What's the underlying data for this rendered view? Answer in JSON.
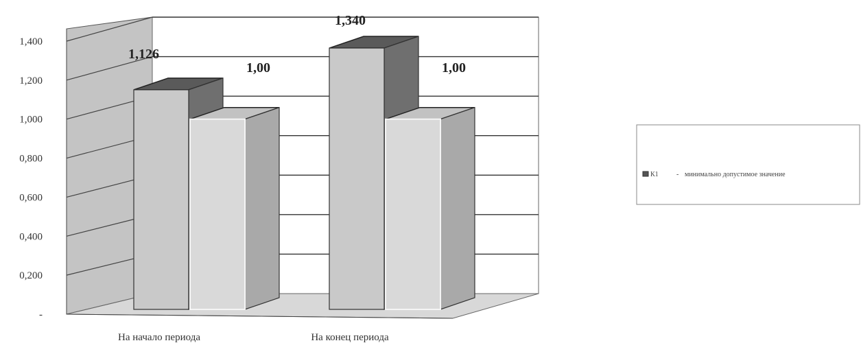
{
  "chart_data": {
    "type": "bar",
    "categories": [
      "На начало периода",
      "На конец периода"
    ],
    "series": [
      {
        "name": "К1",
        "values": [
          1.126,
          1.34
        ],
        "labels": [
          "1,126",
          "1,340"
        ],
        "color": "#c8c8c8"
      },
      {
        "name": "минимально допустимое значение",
        "values": [
          1.0,
          1.0
        ],
        "labels": [
          "1,00",
          "1,00"
        ],
        "color": "#e0e0e0"
      }
    ],
    "yticks": [
      {
        "value": 0,
        "label": "-"
      },
      {
        "value": 0.2,
        "label": "0,200"
      },
      {
        "value": 0.4,
        "label": "0,400"
      },
      {
        "value": 0.6,
        "label": "0,600"
      },
      {
        "value": 0.8,
        "label": "0,800"
      },
      {
        "value": 1.0,
        "label": "1,000"
      },
      {
        "value": 1.2,
        "label": "1,200"
      },
      {
        "value": 1.4,
        "label": "1,400"
      }
    ],
    "ylim": [
      0,
      1.4
    ],
    "grid": true,
    "legend": {
      "position": "right",
      "marker_label": "К1",
      "separator": "-",
      "text": "минимально допустимое значение"
    }
  }
}
